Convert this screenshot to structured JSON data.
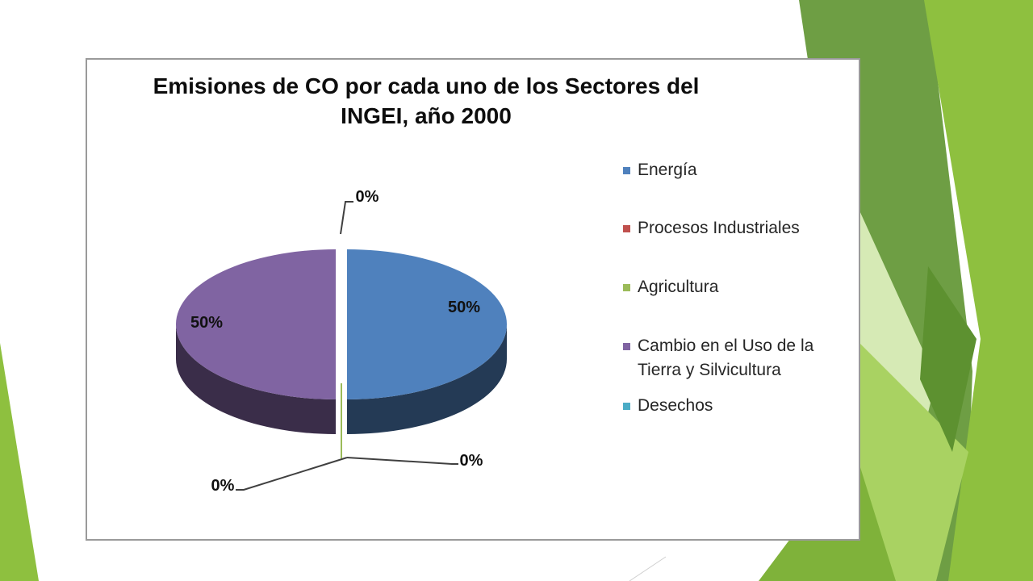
{
  "colors": {
    "background_greens": [
      "#7fb23a",
      "#9ccc52",
      "#6b9a3f",
      "#c8e3a0",
      "#5d9130"
    ]
  },
  "chart_data": {
    "type": "pie",
    "title": [
      "Emisiones de CO por cada uno de los Sectores  del",
      "INGEI,  año 2000"
    ],
    "categories": [
      "Energía",
      "Procesos Industriales",
      "Agricultura",
      "Cambio en el Uso de la Tierra y Silvicultura",
      "Desechos"
    ],
    "legend_lines": [
      [
        "Energía"
      ],
      [
        "Procesos Industriales"
      ],
      [
        "Agricultura"
      ],
      [
        "Cambio en el Uso de la",
        "Tierra y Silvicultura"
      ],
      [
        "Desechos"
      ]
    ],
    "values": [
      50,
      0,
      0,
      50,
      0
    ],
    "data_labels": [
      "50%",
      "0%",
      "0%",
      "50%",
      "0%"
    ],
    "colors": [
      "#4f81bd",
      "#c0504d",
      "#9bbb59",
      "#8064a2",
      "#4bacc6"
    ],
    "exploded": true,
    "three_d": true,
    "legend_position": "right"
  }
}
